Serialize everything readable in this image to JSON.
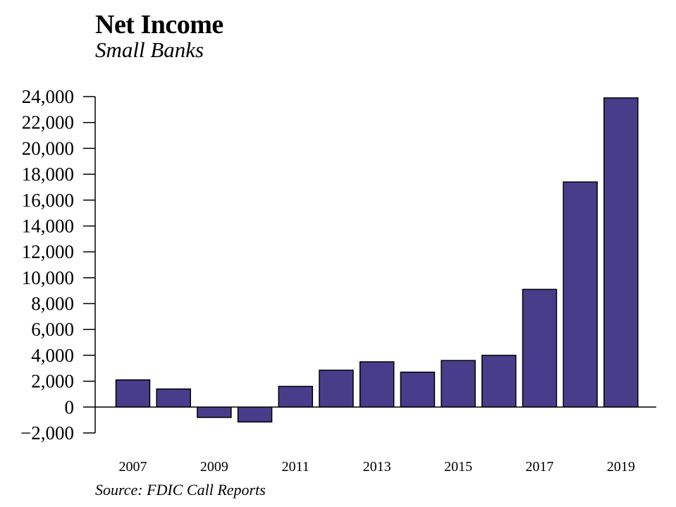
{
  "chart_data": {
    "type": "bar",
    "title": "Net Income",
    "subtitle": "Small Banks",
    "source": "Source: FDIC Call Reports",
    "categories": [
      "2007",
      "2008",
      "2009",
      "2010",
      "2011",
      "2012",
      "2013",
      "2014",
      "2015",
      "2016",
      "2017",
      "2018",
      "2019"
    ],
    "values": [
      2100,
      1400,
      -800,
      -1150,
      1600,
      2850,
      3500,
      2700,
      3600,
      4000,
      9100,
      17400,
      23900
    ],
    "x_tick_labels": [
      "2007",
      "2009",
      "2011",
      "2013",
      "2015",
      "2017",
      "2019"
    ],
    "y_ticks": [
      -2000,
      0,
      2000,
      4000,
      6000,
      8000,
      10000,
      12000,
      14000,
      16000,
      18000,
      20000,
      22000,
      24000
    ],
    "y_tick_labels": [
      "−2,000",
      "0",
      "2,000",
      "4,000",
      "6,000",
      "8,000",
      "10,000",
      "12,000",
      "14,000",
      "16,000",
      "18,000",
      "20,000",
      "22,000",
      "24,000"
    ],
    "ylim": [
      -2000,
      24000
    ],
    "xlabel": "",
    "ylabel": "",
    "grid": false,
    "bar_color": "#483d8b",
    "bar_edge_color": "#000000"
  }
}
